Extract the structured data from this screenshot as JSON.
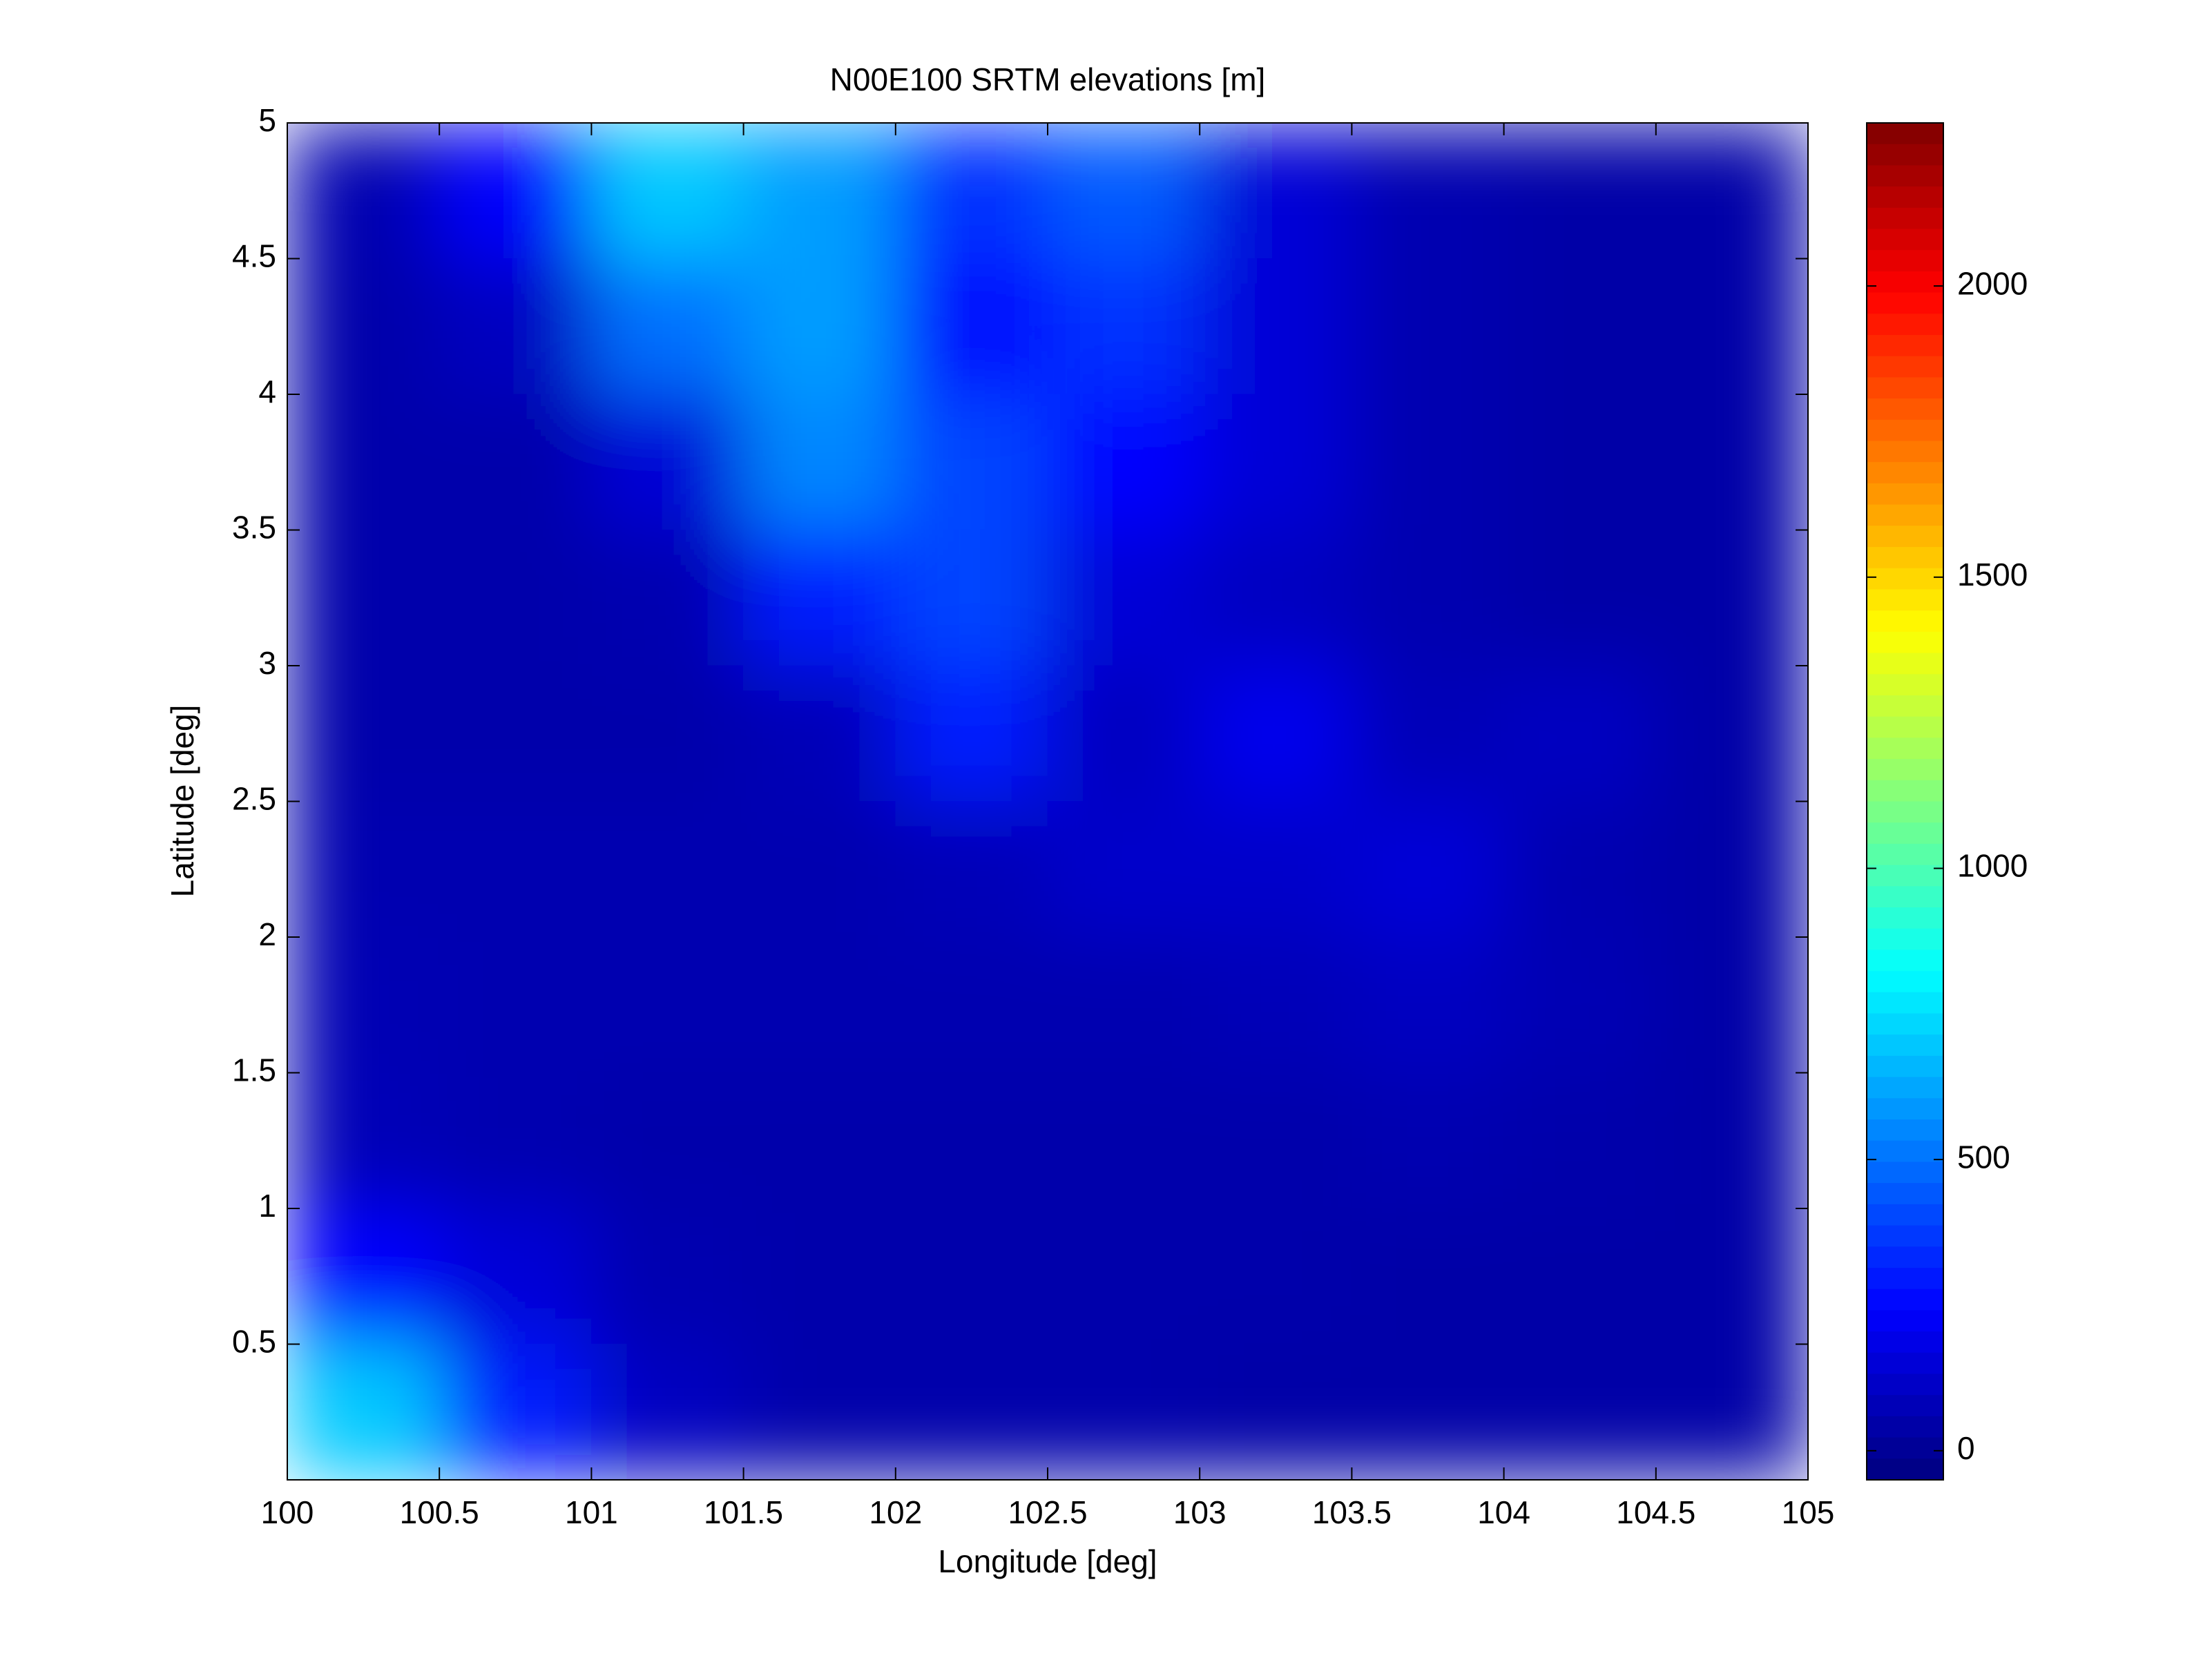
{
  "chart_data": {
    "type": "heatmap",
    "title": "N00E100 SRTM elevations [m]",
    "x_label": "Longitude [deg]",
    "y_label": "Latitude [deg]",
    "x": [
      100.25,
      100.75,
      101.25,
      101.75,
      102.25,
      102.75,
      103.25,
      103.75,
      104.25,
      104.75
    ],
    "y": [
      4.75,
      4.25,
      3.75,
      3.25,
      2.75,
      2.25,
      1.75,
      1.25,
      0.75,
      0.25
    ],
    "z": [
      [
        60,
        250,
        700,
        600,
        350,
        450,
        150,
        60,
        40,
        40
      ],
      [
        50,
        100,
        500,
        600,
        250,
        350,
        150,
        60,
        40,
        40
      ],
      [
        50,
        50,
        150,
        550,
        400,
        250,
        150,
        60,
        40,
        40
      ],
      [
        50,
        50,
        60,
        300,
        400,
        150,
        100,
        60,
        40,
        40
      ],
      [
        50,
        50,
        50,
        80,
        300,
        100,
        200,
        80,
        100,
        40
      ],
      [
        60,
        60,
        60,
        60,
        80,
        120,
        120,
        150,
        60,
        40
      ],
      [
        70,
        60,
        60,
        60,
        60,
        60,
        80,
        100,
        70,
        40
      ],
      [
        80,
        60,
        50,
        50,
        50,
        50,
        50,
        60,
        50,
        40
      ],
      [
        250,
        150,
        60,
        50,
        50,
        50,
        50,
        40,
        40,
        40
      ],
      [
        700,
        300,
        100,
        50,
        50,
        50,
        40,
        40,
        40,
        40
      ]
    ],
    "colormap": "jet",
    "xlim": [
      100,
      105
    ],
    "xticks": [
      100,
      100.5,
      101,
      101.5,
      102,
      102.5,
      103,
      103.5,
      104,
      104.5,
      105
    ],
    "ylim": [
      0,
      5
    ],
    "yticks": [
      0.5,
      1,
      1.5,
      2,
      2.5,
      3,
      3.5,
      4,
      4.5,
      5
    ],
    "clim": [
      -50,
      2280
    ],
    "cticks": [
      0,
      500,
      1000,
      1500,
      2000
    ]
  }
}
